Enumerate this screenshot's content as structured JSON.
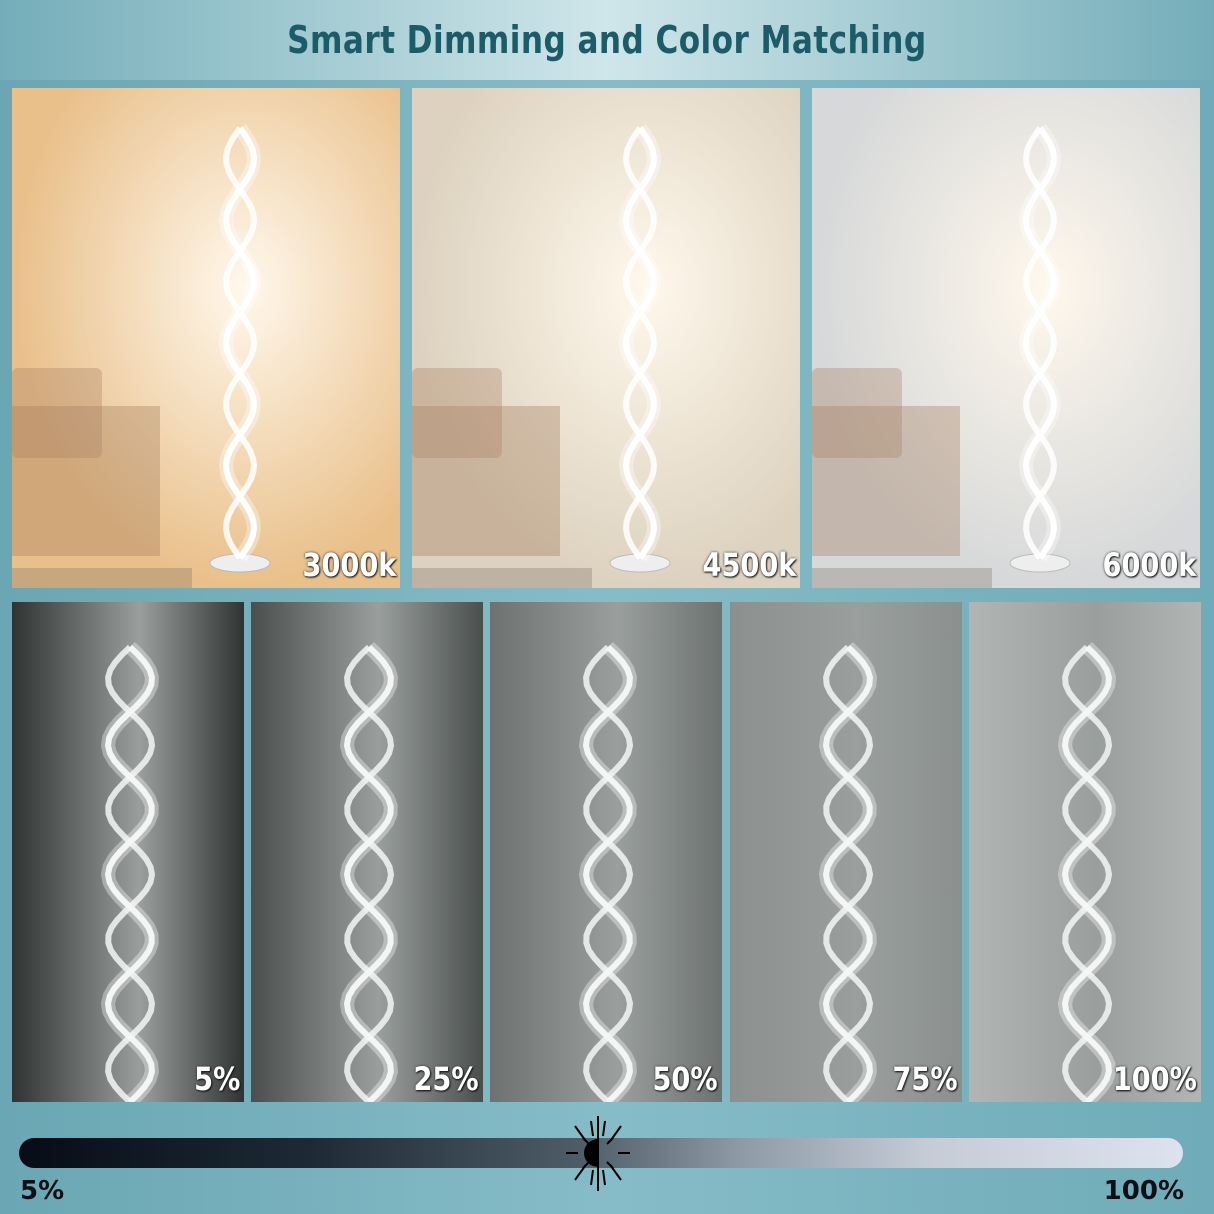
{
  "title": "Smart Dimming and Color Matching",
  "color_temperatures": [
    {
      "label": "3000k",
      "bg": "#e9c08a"
    },
    {
      "label": "4500k",
      "bg": "#ddd2bf"
    },
    {
      "label": "6000k",
      "bg": "#d6d8d9"
    }
  ],
  "brightness_levels": [
    {
      "label": "5%",
      "bg": "#2f3332"
    },
    {
      "label": "25%",
      "bg": "#4a4f4d"
    },
    {
      "label": "50%",
      "bg": "#6d7270"
    },
    {
      "label": "75%",
      "bg": "#8b908e"
    },
    {
      "label": "100%",
      "bg": "#b1b5b3"
    }
  ],
  "brightness_slider": {
    "min_label": "5%",
    "max_label": "100%",
    "icon": "sun-icon"
  }
}
